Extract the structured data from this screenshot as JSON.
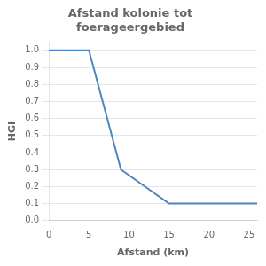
{
  "chart_data": {
    "type": "line",
    "title": "Afstand kolonie tot\nfoerageergebied",
    "x_label": "Afstand (km)",
    "y_label": "HGI",
    "x": [
      0,
      5,
      9,
      15,
      20,
      26
    ],
    "values": [
      1.0,
      1.0,
      0.3,
      0.1,
      0.1,
      0.1
    ],
    "color": "#4a86c0",
    "xlim": [
      0,
      26
    ],
    "ylim": [
      0.0,
      1.05
    ],
    "xticks": [
      0,
      5,
      10,
      15,
      20,
      25
    ],
    "yticks": [
      {
        "value": 0,
        "label": "0.0"
      },
      0.1,
      0.2,
      0.3,
      0.4,
      0.5,
      0.6,
      0.7,
      0.8,
      0.9,
      {
        "value": 1,
        "label": "1.0"
      }
    ],
    "grid": "y"
  }
}
